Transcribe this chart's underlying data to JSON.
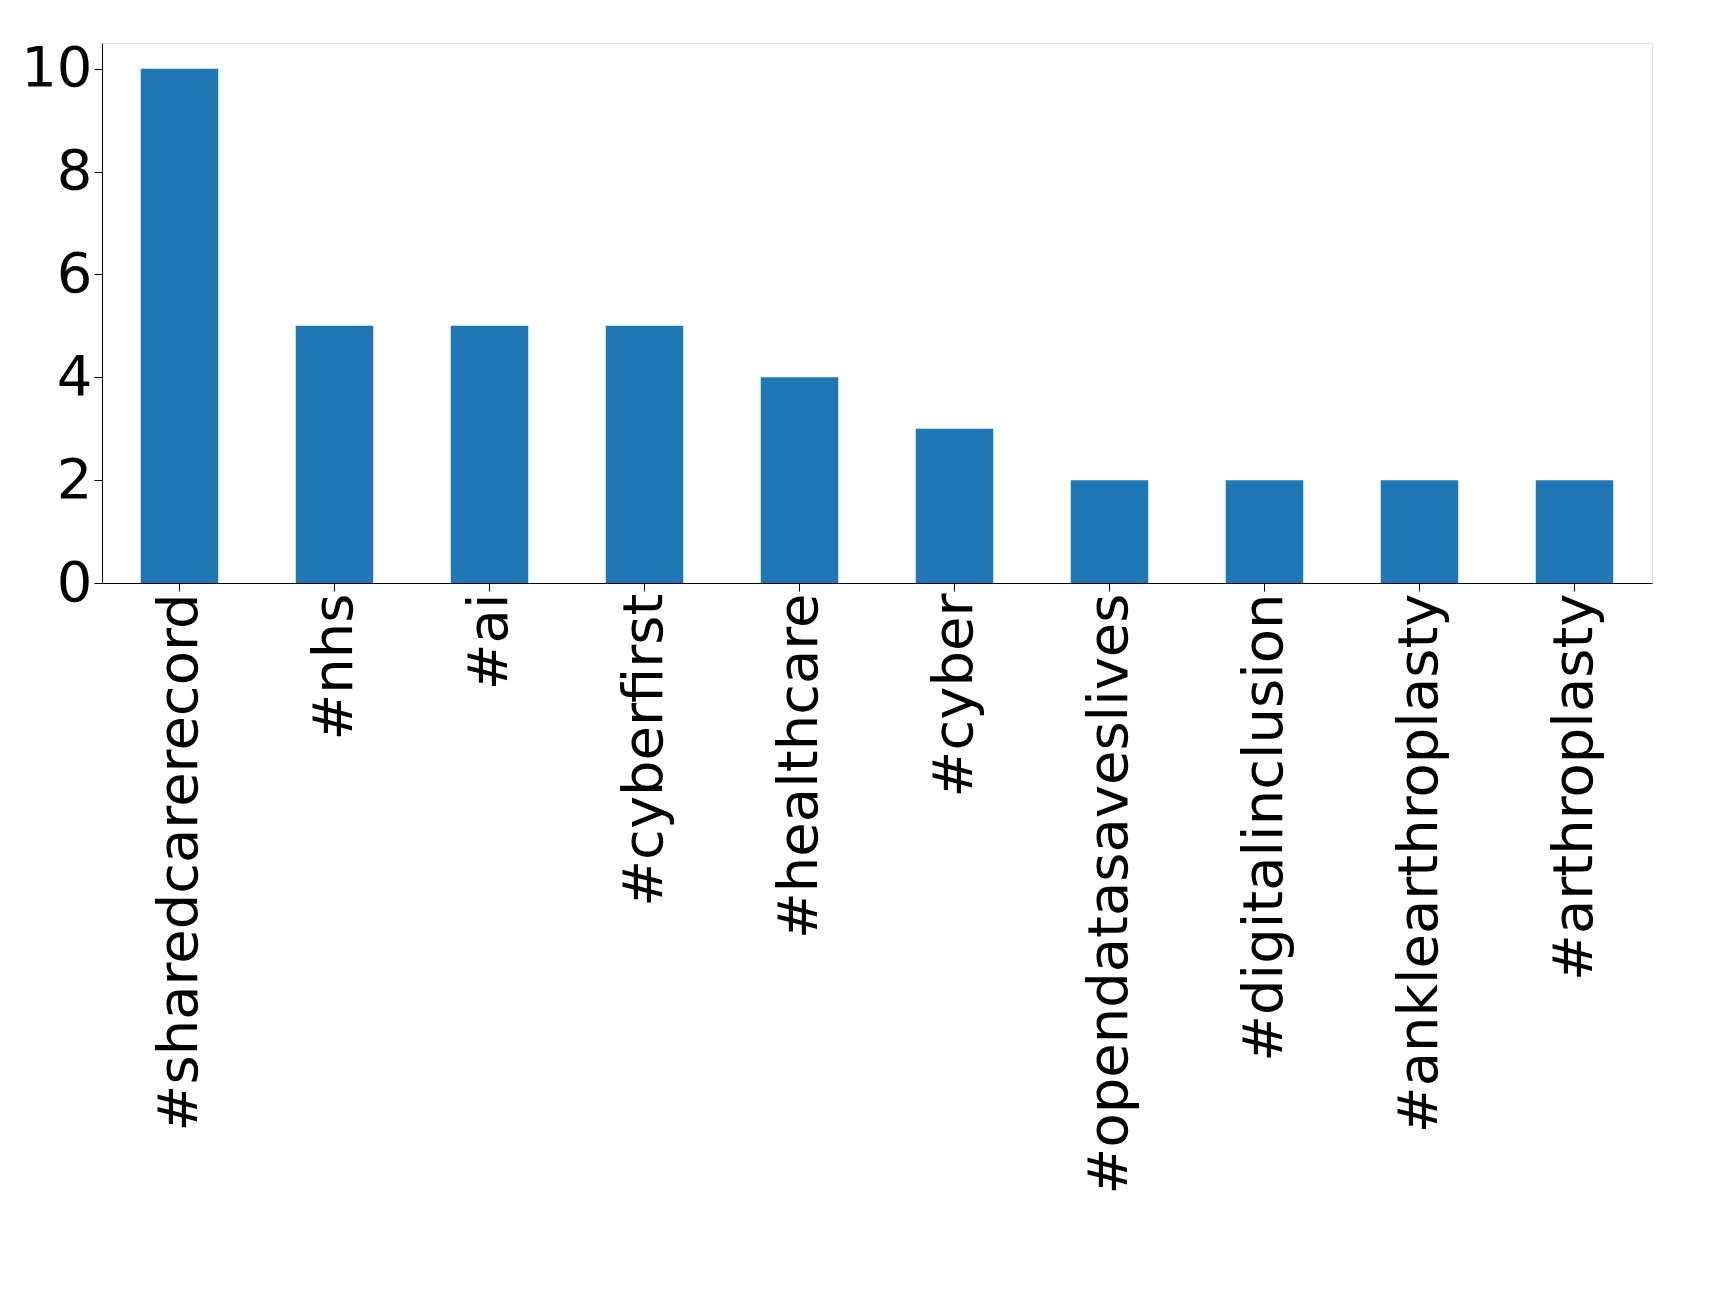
{
  "chart_data": {
    "type": "bar",
    "categories": [
      "#sharedcarerecord",
      "#nhs",
      "#ai",
      "#cyberfirst",
      "#healthcare",
      "#cyber",
      "#opendatasaveslives",
      "#digitalinclusion",
      "#anklearthroplasty",
      "#arthroplasty"
    ],
    "values": [
      10,
      5,
      5,
      5,
      4,
      3,
      2,
      2,
      2,
      2
    ],
    "color": "#1f77b4",
    "ylim": [
      0,
      10.5
    ],
    "yticks": [
      0,
      2,
      4,
      6,
      8,
      10
    ],
    "grid": false
  }
}
